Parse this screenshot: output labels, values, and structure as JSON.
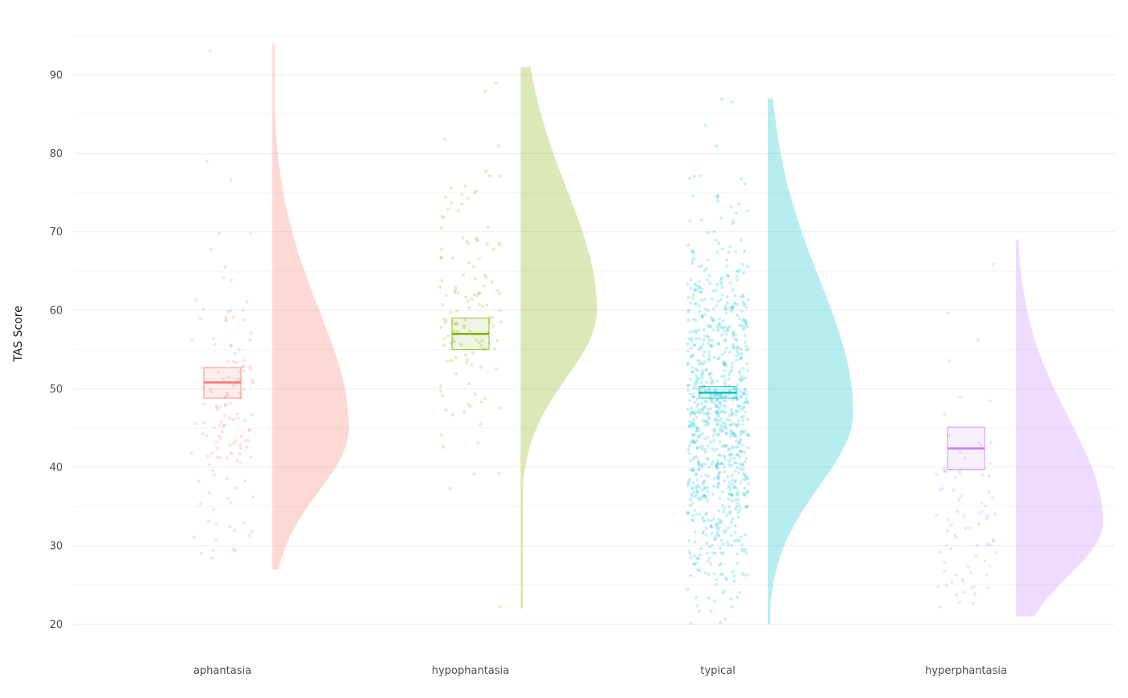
{
  "chart_data": {
    "type": "raincloud",
    "ylabel": "TAS Score",
    "ylim": [
      20,
      95
    ],
    "yticks": [
      20,
      30,
      40,
      50,
      60,
      70,
      80,
      90
    ],
    "grid": true,
    "legend": "none",
    "categories": [
      "aphantasia",
      "hypophantasia",
      "typical",
      "hyperphantasia"
    ],
    "series": [
      {
        "name": "aphantasia",
        "color": "#F8766D",
        "min": 27,
        "max": 94,
        "median": 50.8,
        "ci_low": 48.8,
        "ci_high": 52.7,
        "n": 140,
        "mode": 45,
        "spread": 9.5,
        "skew": 1.0
      },
      {
        "name": "hypophantasia",
        "color": "#7CAE00",
        "min": 22,
        "max": 91,
        "median": 57,
        "ci_low": 55,
        "ci_high": 59,
        "n": 140,
        "mode": 60,
        "spread": 10,
        "skew": 0.9
      },
      {
        "name": "typical",
        "color": "#00BFC4",
        "min": 20,
        "max": 87,
        "median": 49.5,
        "ci_low": 48.8,
        "ci_high": 50.3,
        "n": 900,
        "mode": 47,
        "spread": 11,
        "skew": 0.9
      },
      {
        "name": "hyperphantasia",
        "color": "#C77CFF",
        "min": 21,
        "max": 69,
        "median": 42.4,
        "ci_low": 39.7,
        "ci_high": 45.1,
        "n": 80,
        "mode": 33,
        "spread": 8,
        "skew": 1.1
      }
    ]
  }
}
